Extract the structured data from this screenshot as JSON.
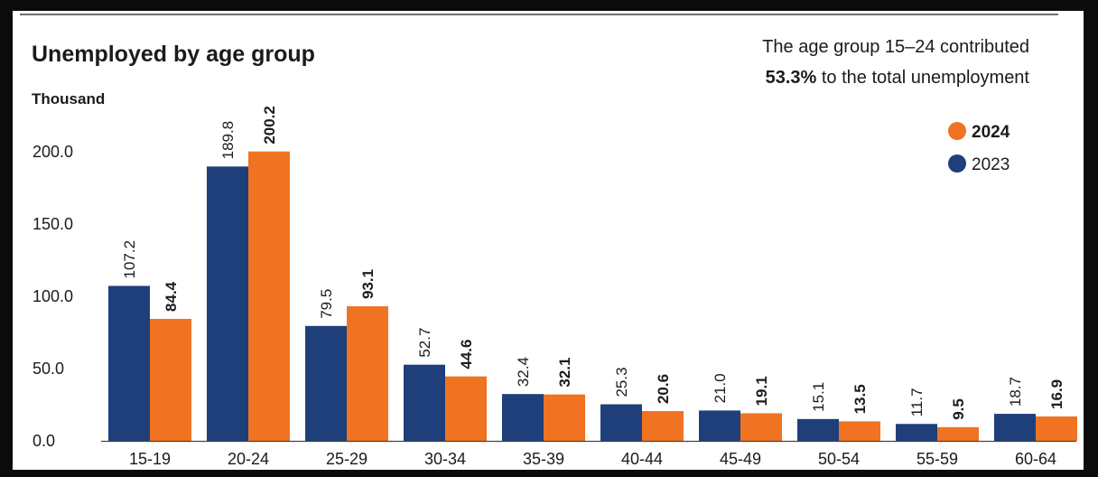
{
  "chart_data": {
    "type": "bar",
    "title": "Unemployed by age group",
    "ylabel": "Thousand",
    "annotation": {
      "line1": "The age group 15–24 contributed",
      "bold": "53.3%",
      "line2_rest": " to the total unemployment"
    },
    "categories": [
      "15-19",
      "20-24",
      "25-29",
      "30-34",
      "35-39",
      "40-44",
      "45-49",
      "50-54",
      "55-59",
      "60-64"
    ],
    "series": [
      {
        "name": "2023",
        "color": "#1e3f7a",
        "values": [
          107.2,
          189.8,
          79.5,
          52.7,
          32.4,
          25.3,
          21.0,
          15.1,
          11.7,
          18.7
        ],
        "labels": [
          "107.2",
          "189.8",
          "79.5",
          "52.7",
          "32.4",
          "25.3",
          "21.0",
          "15.1",
          "11.7",
          "18.7"
        ]
      },
      {
        "name": "2024",
        "color": "#f07322",
        "values": [
          84.4,
          200.2,
          93.1,
          44.6,
          32.1,
          20.6,
          19.1,
          13.5,
          9.5,
          16.9
        ],
        "labels": [
          "84.4",
          "200.2",
          "93.1",
          "44.6",
          "32.1",
          "20.6",
          "19.1",
          "13.5",
          "9.5",
          "16.9"
        ]
      }
    ],
    "legend": [
      {
        "name": "2024",
        "color": "#f07322",
        "bold": true
      },
      {
        "name": "2023",
        "color": "#1e3f7a",
        "bold": false
      }
    ],
    "yticks": [
      0,
      50,
      100,
      150,
      200
    ],
    "ytick_labels": [
      "0.0",
      "50.0",
      "100.0",
      "150.0",
      "200.0"
    ],
    "ylim": [
      0,
      200
    ],
    "grid": false,
    "legend_position": "top-right"
  }
}
